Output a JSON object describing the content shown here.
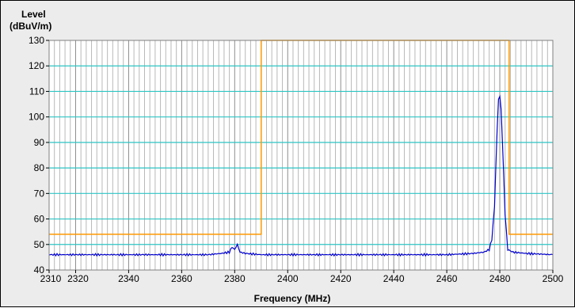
{
  "chart_data": {
    "type": "line",
    "title": "",
    "xlabel": "Frequency (MHz)",
    "ylabel_line1": "Level",
    "ylabel_line2": "(dBuV/m)",
    "xlim": [
      2310,
      2500
    ],
    "ylim": [
      40,
      130
    ],
    "x_ticks": [
      2310,
      2320,
      2340,
      2360,
      2380,
      2400,
      2420,
      2440,
      2460,
      2480,
      2500
    ],
    "y_ticks": [
      40,
      50,
      60,
      70,
      80,
      90,
      100,
      110,
      120,
      130
    ],
    "grid": true,
    "colors": {
      "trace": "#0000cc",
      "limit": "#ff9900",
      "h_grid": "#2ec4c4",
      "v_grid": "#b8b8b8",
      "background": "#ffffff",
      "frame": "#ececec"
    },
    "limit_line": {
      "name": "limit",
      "x": [
        2310,
        2390,
        2390,
        2483.5,
        2483.5,
        2500
      ],
      "y": [
        54,
        54,
        130,
        130,
        54,
        54
      ]
    },
    "series": [
      {
        "x": [
          2310,
          2320,
          2330,
          2340,
          2350,
          2360,
          2370,
          2375,
          2378,
          2379,
          2380,
          2381,
          2382,
          2384,
          2390,
          2400,
          2420,
          2440,
          2460,
          2470,
          2474,
          2476,
          2477,
          2478,
          2479,
          2479.5,
          2480,
          2480.5,
          2481,
          2482,
          2483,
          2485,
          2490,
          2500
        ],
        "y": [
          46,
          46,
          46,
          46,
          46,
          46,
          46,
          46.5,
          47,
          49,
          48,
          50,
          47,
          46.5,
          46,
          46,
          46,
          46,
          46,
          46.5,
          47,
          48,
          52,
          65,
          95,
          107,
          108,
          103,
          90,
          62,
          48,
          47,
          46.5,
          46
        ]
      }
    ]
  }
}
